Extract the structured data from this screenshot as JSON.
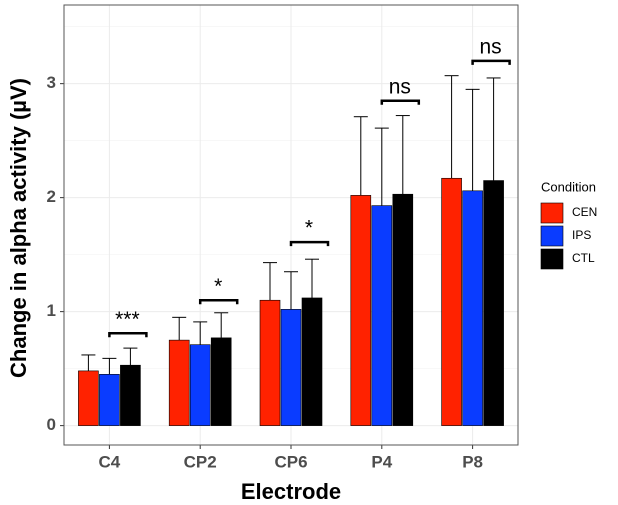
{
  "chart_data": {
    "type": "bar",
    "x_label": "Electrode",
    "y_label": "Change in alpha activity (µV)",
    "categories": [
      "C4",
      "CP2",
      "CP6",
      "P4",
      "P8"
    ],
    "series": [
      {
        "name": "CEN",
        "color": "#ff2200",
        "values": [
          0.48,
          0.75,
          1.1,
          2.02,
          2.17
        ],
        "errors": [
          0.14,
          0.2,
          0.33,
          0.69,
          0.9
        ]
      },
      {
        "name": "IPS",
        "color": "#0a3cff",
        "values": [
          0.45,
          0.71,
          1.02,
          1.93,
          2.06
        ],
        "errors": [
          0.14,
          0.2,
          0.33,
          0.68,
          0.89
        ]
      },
      {
        "name": "CTL",
        "color": "#000000",
        "values": [
          0.53,
          0.77,
          1.12,
          2.03,
          2.15
        ],
        "errors": [
          0.15,
          0.22,
          0.34,
          0.69,
          0.9
        ]
      }
    ],
    "ylim": [
      -0.17,
      3.69
    ],
    "yticks": [
      0,
      1,
      2,
      3
    ],
    "grid": true,
    "legend_title": "Condition",
    "legend_position": "right",
    "annotations": [
      {
        "text": "***",
        "category": "C4",
        "y": 0.81
      },
      {
        "text": "*",
        "category": "CP2",
        "y": 1.1
      },
      {
        "text": "*",
        "category": "CP6",
        "y": 1.61
      },
      {
        "text": "ns",
        "category": "P4",
        "y": 2.85
      },
      {
        "text": "ns",
        "category": "P8",
        "y": 3.2
      }
    ]
  }
}
